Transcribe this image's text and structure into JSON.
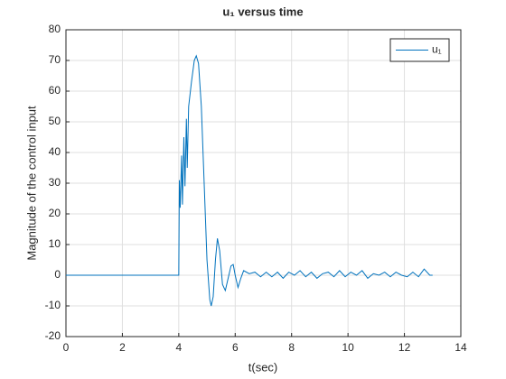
{
  "chart_data": {
    "type": "line",
    "title": "u₁ versus time",
    "x_label": "t(sec)",
    "y_label": "Magnitude of the control input",
    "x": [
      0,
      4.0,
      4.02,
      4.05,
      4.1,
      4.13,
      4.18,
      4.22,
      4.27,
      4.3,
      4.35,
      4.45,
      4.55,
      4.62,
      4.7,
      4.8,
      4.9,
      5.0,
      5.1,
      5.15,
      5.22,
      5.3,
      5.37,
      5.45,
      5.55,
      5.65,
      5.75,
      5.85,
      5.93,
      6.0,
      6.1,
      6.2,
      6.3,
      6.5,
      6.7,
      6.9,
      7.1,
      7.3,
      7.5,
      7.7,
      7.9,
      8.1,
      8.3,
      8.5,
      8.7,
      8.9,
      9.1,
      9.3,
      9.5,
      9.7,
      9.9,
      10.1,
      10.3,
      10.5,
      10.7,
      10.9,
      11.1,
      11.3,
      11.5,
      11.7,
      11.9,
      12.1,
      12.3,
      12.5,
      12.7,
      12.9,
      13.0
    ],
    "series": [
      {
        "name": "u₁",
        "color": "#0072bd",
        "values": [
          0,
          0,
          31,
          22,
          39,
          23,
          45,
          29,
          51,
          35,
          55,
          63,
          70,
          71.5,
          69,
          55,
          30,
          5,
          -8,
          -10,
          -7,
          5,
          12,
          8,
          -3,
          -5,
          -1,
          3,
          3.5,
          0,
          -4,
          -1,
          1.5,
          0.5,
          1,
          -0.5,
          1,
          -0.5,
          1,
          -1,
          1,
          0,
          1.5,
          -0.5,
          1,
          -1,
          0.5,
          1,
          -0.5,
          1.5,
          -0.5,
          1,
          0,
          1.5,
          -1,
          0.5,
          0,
          1,
          -0.5,
          1,
          0,
          -0.5,
          1,
          -0.5,
          2,
          0,
          0
        ]
      }
    ],
    "xlim": [
      0,
      14
    ],
    "xticks": [
      0,
      2,
      4,
      6,
      8,
      10,
      12,
      14
    ],
    "ylim": [
      -20,
      80
    ],
    "yticks": [
      -20,
      -10,
      0,
      10,
      20,
      30,
      40,
      50,
      60,
      70,
      80
    ],
    "grid": true,
    "legend": "upper right"
  }
}
